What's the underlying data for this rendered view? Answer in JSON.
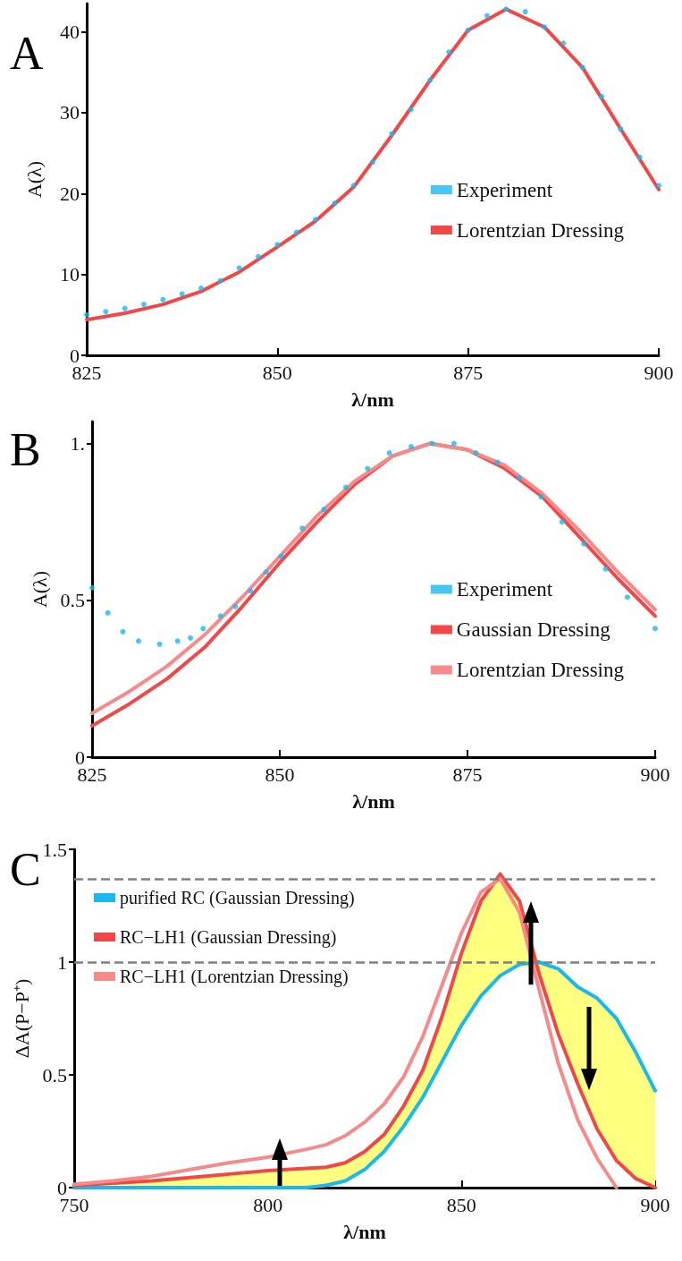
{
  "chart_data": [
    {
      "type": "line",
      "title": "A",
      "xlabel": "λ/nm",
      "ylabel": "A(λ)",
      "xlim": [
        825,
        900
      ],
      "xticks": [
        825,
        850,
        875,
        900
      ],
      "ylim": [
        0,
        43.5
      ],
      "yticks": [
        0,
        10,
        20,
        30,
        40
      ],
      "grid": false,
      "legend": "right",
      "series": [
        {
          "name": "Experiment",
          "type": "scatter",
          "marker": "circle",
          "color": "#1ab8f0",
          "x": [
            825,
            827.5,
            830,
            832.5,
            835,
            837.5,
            840,
            842.5,
            845,
            847.5,
            850,
            852.5,
            855,
            857.5,
            860,
            862.5,
            865,
            867.5,
            870,
            872.5,
            875,
            877.5,
            880,
            882.5,
            885,
            887.5,
            890,
            892.5,
            895,
            897.5,
            900
          ],
          "values": [
            5.0,
            5.4,
            5.8,
            6.3,
            6.9,
            7.6,
            8.3,
            9.2,
            10.8,
            12.2,
            13.7,
            15.2,
            16.8,
            18.8,
            21.0,
            23.9,
            27.4,
            30.4,
            34.0,
            37.5,
            40.2,
            42.0,
            42.8,
            42.5,
            40.6,
            38.6,
            35.6,
            32.0,
            28.0,
            24.5,
            21.0
          ]
        },
        {
          "name": "Lorentzian Dressing",
          "type": "line",
          "marker": "none",
          "line_style": "solid",
          "color": "#f04848",
          "x": [
            825,
            830,
            835,
            840,
            845,
            850,
            855,
            860,
            865,
            870,
            875,
            880,
            885,
            890,
            895,
            900
          ],
          "values": [
            4.4,
            5.2,
            6.3,
            7.9,
            10.3,
            13.4,
            16.6,
            20.8,
            27.2,
            34.0,
            40.2,
            42.8,
            40.6,
            35.6,
            28.0,
            20.5
          ]
        }
      ]
    },
    {
      "type": "line",
      "title": "B",
      "xlabel": "λ/nm",
      "ylabel": "A(λ)",
      "xlim": [
        825,
        900
      ],
      "xticks": [
        825,
        850,
        875,
        900
      ],
      "ylim": [
        0,
        1.07
      ],
      "yticks": [
        0,
        0.5,
        {
          "value": 1,
          "label": "1."
        }
      ],
      "grid": false,
      "legend": "right",
      "series": [
        {
          "name": "Experiment",
          "type": "scatter",
          "marker": "circle",
          "color": "#1ab8f0",
          "x": [
            825,
            827.1,
            829.1,
            831.2,
            834,
            836.4,
            838.1,
            839.8,
            842.1,
            844.1,
            846.1,
            848.2,
            850.2,
            853,
            855.9,
            858.8,
            861.7,
            864.6,
            867.5,
            870.3,
            873.2,
            876.1,
            879,
            881.9,
            884.8,
            887.6,
            890.5,
            893.4,
            896.3,
            900
          ],
          "values": [
            0.54,
            0.46,
            0.4,
            0.37,
            0.36,
            0.37,
            0.38,
            0.41,
            0.45,
            0.48,
            0.53,
            0.59,
            0.64,
            0.73,
            0.79,
            0.86,
            0.92,
            0.97,
            0.99,
            1.0,
            1.0,
            0.97,
            0.94,
            0.89,
            0.83,
            0.75,
            0.68,
            0.6,
            0.51,
            0.41
          ]
        },
        {
          "name": "Gaussian Dressing",
          "type": "line",
          "marker": "none",
          "line_style": "solid",
          "color": "#f04848",
          "x": [
            825,
            830,
            835,
            840,
            845,
            850,
            855,
            860,
            865,
            870,
            875,
            880,
            885,
            890,
            895,
            900
          ],
          "values": [
            0.1,
            0.17,
            0.25,
            0.35,
            0.48,
            0.62,
            0.75,
            0.87,
            0.96,
            1.0,
            0.98,
            0.92,
            0.83,
            0.7,
            0.57,
            0.45
          ]
        },
        {
          "name": "Lorentzian Dressing",
          "type": "line",
          "marker": "none",
          "line_style": "solid",
          "color": "#f58a8a",
          "x": [
            825,
            830,
            835,
            840,
            845,
            850,
            855,
            860,
            865,
            870,
            875,
            880,
            885,
            890,
            895,
            900
          ],
          "values": [
            0.14,
            0.21,
            0.29,
            0.39,
            0.51,
            0.64,
            0.77,
            0.88,
            0.96,
            1.0,
            0.98,
            0.93,
            0.84,
            0.72,
            0.59,
            0.47
          ]
        }
      ]
    },
    {
      "type": "line",
      "title": "C",
      "xlabel": "λ/nm",
      "ylabel": "ΔA(P−P⁺)",
      "xlim": [
        750,
        900
      ],
      "xticks": [
        750,
        800,
        850,
        900
      ],
      "ylim": [
        0,
        1.5
      ],
      "yticks": [
        0,
        0.5,
        1,
        1.5
      ],
      "grid": false,
      "legend": "top left",
      "marker": "none",
      "line_style": "solid",
      "x": [
        750,
        760,
        770,
        780,
        790,
        800,
        810,
        815,
        820,
        825,
        830,
        835,
        840,
        845,
        850,
        855,
        860,
        865,
        870,
        875,
        880,
        885,
        890,
        895,
        900
      ],
      "ref_lines": [
        {
          "axis": "y",
          "value": 1.37,
          "color": "#808080",
          "line_style": "dashed"
        },
        {
          "axis": "y",
          "value": 1,
          "color": "#808080",
          "line_style": "dashed"
        }
      ],
      "series": [
        {
          "name": "purified RC (Gaussian Dressing)",
          "color": "#1ab8f0",
          "values": [
            0,
            0,
            0,
            0,
            0,
            0,
            0,
            0.01,
            0.03,
            0.08,
            0.16,
            0.27,
            0.4,
            0.56,
            0.72,
            0.85,
            0.94,
            0.99,
            1.0,
            0.97,
            0.89,
            0.84,
            0.75,
            0.6,
            0.43
          ]
        },
        {
          "name": "RC−LH1 (Gaussian Dressing)",
          "color": "#f04848",
          "values": [
            0.01,
            0.02,
            0.03,
            0.045,
            0.06,
            0.075,
            0.085,
            0.09,
            0.11,
            0.16,
            0.235,
            0.36,
            0.52,
            0.76,
            1.04,
            1.27,
            1.39,
            1.27,
            0.95,
            0.68,
            0.46,
            0.26,
            0.12,
            0.04,
            0
          ],
          "lower": [
            0,
            0,
            0,
            0,
            0,
            0,
            0,
            0.01,
            0.03,
            0.08,
            0.16,
            0.27,
            0.4,
            0.56,
            0.72,
            0.85,
            0.94,
            0.99,
            0.95,
            0.68,
            0.46,
            0.26,
            0.12,
            0.04,
            0
          ],
          "upper": [
            0.01,
            0.02,
            0.03,
            0.045,
            0.06,
            0.075,
            0.085,
            0.09,
            0.11,
            0.16,
            0.235,
            0.36,
            0.52,
            0.76,
            1.04,
            1.27,
            1.39,
            1.27,
            1.0,
            0.97,
            0.89,
            0.84,
            0.75,
            0.6,
            0.43
          ]
        },
        {
          "name": "RC−LH1 (Lorentzian Dressing)",
          "color": "#f58a8a",
          "values": [
            0.015,
            0.03,
            0.05,
            0.08,
            0.11,
            0.135,
            0.17,
            0.19,
            0.23,
            0.29,
            0.37,
            0.49,
            0.67,
            0.9,
            1.13,
            1.31,
            1.37,
            1.22,
            0.88,
            0.55,
            0.3,
            0.13,
            0,
            null,
            null
          ]
        }
      ]
    }
  ]
}
